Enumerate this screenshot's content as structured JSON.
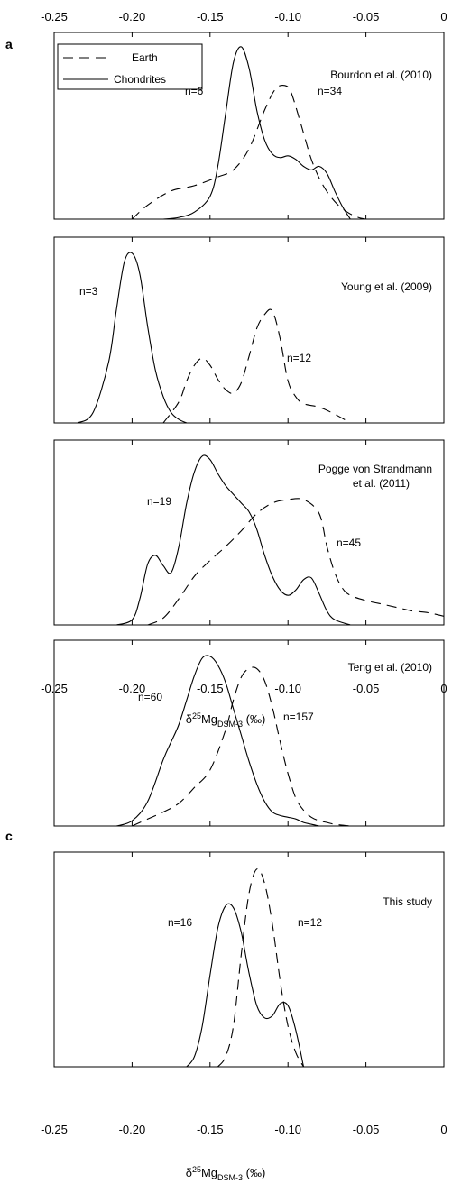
{
  "panel_labels": {
    "a": "a",
    "c": "c"
  },
  "legend": {
    "earth": "Earth",
    "chondrites": "Chondrites"
  },
  "axis": {
    "tick_labels": [
      "-0.25",
      "-0.20",
      "-0.15",
      "-0.10",
      "-0.05",
      "0"
    ],
    "xlabel_delta": "δ",
    "xlabel_super": "25",
    "xlabel_mg": "Mg",
    "xlabel_sub": "DSM-3",
    "xlabel_unit": " (‰)"
  },
  "chart_data": [
    {
      "type": "line",
      "title": "Bourdon et al. (2010)",
      "xlim": [
        -0.25,
        0
      ],
      "series": [
        {
          "name": "Earth",
          "style": "dashed",
          "label": "n=34",
          "x": [
            -0.2,
            -0.19,
            -0.175,
            -0.16,
            -0.145,
            -0.135,
            -0.125,
            -0.115,
            -0.108,
            -0.102,
            -0.098,
            -0.092,
            -0.085,
            -0.078,
            -0.07,
            -0.062,
            -0.055,
            -0.05
          ],
          "y": [
            0.0,
            0.08,
            0.16,
            0.19,
            0.24,
            0.28,
            0.4,
            0.62,
            0.74,
            0.76,
            0.72,
            0.55,
            0.34,
            0.2,
            0.1,
            0.04,
            0.01,
            0.0
          ]
        },
        {
          "name": "Chondrites",
          "style": "solid",
          "label": "n=6",
          "x": [
            -0.18,
            -0.17,
            -0.16,
            -0.15,
            -0.145,
            -0.14,
            -0.135,
            -0.13,
            -0.125,
            -0.12,
            -0.115,
            -0.11,
            -0.105,
            -0.1,
            -0.095,
            -0.09,
            -0.085,
            -0.08,
            -0.075,
            -0.07,
            -0.065,
            -0.06
          ],
          "y": [
            0.0,
            0.01,
            0.04,
            0.13,
            0.3,
            0.6,
            0.89,
            0.98,
            0.86,
            0.62,
            0.45,
            0.37,
            0.35,
            0.36,
            0.34,
            0.3,
            0.28,
            0.3,
            0.26,
            0.16,
            0.07,
            0.0
          ]
        }
      ]
    },
    {
      "type": "line",
      "title": "Young et al. (2009)",
      "xlim": [
        -0.25,
        0
      ],
      "series": [
        {
          "name": "Earth",
          "style": "dashed",
          "label": "n=12",
          "x": [
            -0.18,
            -0.17,
            -0.165,
            -0.16,
            -0.155,
            -0.15,
            -0.145,
            -0.14,
            -0.135,
            -0.13,
            -0.125,
            -0.12,
            -0.115,
            -0.11,
            -0.105,
            -0.1,
            -0.095,
            -0.09,
            -0.08,
            -0.07,
            -0.06
          ],
          "y": [
            0.0,
            0.12,
            0.24,
            0.33,
            0.37,
            0.33,
            0.25,
            0.19,
            0.17,
            0.23,
            0.38,
            0.54,
            0.62,
            0.64,
            0.48,
            0.24,
            0.15,
            0.11,
            0.09,
            0.05,
            0.0
          ]
        },
        {
          "name": "Chondrites",
          "style": "solid",
          "label": "n=3",
          "x": [
            -0.235,
            -0.225,
            -0.215,
            -0.21,
            -0.205,
            -0.2,
            -0.195,
            -0.19,
            -0.185,
            -0.18,
            -0.175,
            -0.17,
            -0.165
          ],
          "y": [
            0.0,
            0.06,
            0.35,
            0.65,
            0.92,
            0.97,
            0.85,
            0.55,
            0.3,
            0.15,
            0.06,
            0.02,
            0.0
          ]
        }
      ]
    },
    {
      "type": "line",
      "title": "Pogge von Strandmann et al. (2011)",
      "xlim": [
        -0.25,
        0
      ],
      "series": [
        {
          "name": "Earth",
          "style": "dashed",
          "label": "n=45",
          "x": [
            -0.19,
            -0.18,
            -0.17,
            -0.16,
            -0.15,
            -0.14,
            -0.13,
            -0.12,
            -0.11,
            -0.1,
            -0.09,
            -0.08,
            -0.075,
            -0.07,
            -0.065,
            -0.06,
            -0.05,
            -0.04,
            -0.03,
            -0.02,
            -0.01,
            0.0
          ],
          "y": [
            0.0,
            0.04,
            0.15,
            0.28,
            0.37,
            0.45,
            0.54,
            0.64,
            0.7,
            0.72,
            0.72,
            0.64,
            0.45,
            0.3,
            0.21,
            0.17,
            0.14,
            0.12,
            0.1,
            0.08,
            0.07,
            0.05
          ]
        },
        {
          "name": "Chondrites",
          "style": "solid",
          "label": "n=19",
          "x": [
            -0.21,
            -0.2,
            -0.195,
            -0.19,
            -0.185,
            -0.18,
            -0.175,
            -0.17,
            -0.165,
            -0.16,
            -0.155,
            -0.15,
            -0.145,
            -0.14,
            -0.135,
            -0.13,
            -0.125,
            -0.12,
            -0.115,
            -0.11,
            -0.105,
            -0.1,
            -0.095,
            -0.09,
            -0.085,
            -0.08,
            -0.075,
            -0.07,
            -0.06
          ],
          "y": [
            0.0,
            0.03,
            0.15,
            0.35,
            0.4,
            0.34,
            0.3,
            0.45,
            0.7,
            0.88,
            0.97,
            0.95,
            0.87,
            0.8,
            0.75,
            0.7,
            0.65,
            0.55,
            0.4,
            0.28,
            0.2,
            0.17,
            0.2,
            0.26,
            0.27,
            0.18,
            0.08,
            0.03,
            0.0
          ]
        }
      ]
    },
    {
      "type": "line",
      "title": "Teng et al. (2010)",
      "xlim": [
        -0.25,
        0
      ],
      "series": [
        {
          "name": "Earth",
          "style": "dashed",
          "label": "n=157",
          "x": [
            -0.2,
            -0.19,
            -0.18,
            -0.17,
            -0.16,
            -0.15,
            -0.14,
            -0.135,
            -0.13,
            -0.125,
            -0.12,
            -0.115,
            -0.11,
            -0.105,
            -0.1,
            -0.095,
            -0.09,
            -0.085,
            -0.08,
            -0.075,
            -0.07,
            -0.06
          ],
          "y": [
            0.0,
            0.04,
            0.08,
            0.13,
            0.22,
            0.32,
            0.55,
            0.72,
            0.85,
            0.9,
            0.9,
            0.83,
            0.68,
            0.48,
            0.3,
            0.16,
            0.09,
            0.05,
            0.03,
            0.02,
            0.01,
            0.0
          ]
        },
        {
          "name": "Chondrites",
          "style": "solid",
          "label": "n=60",
          "x": [
            -0.21,
            -0.2,
            -0.19,
            -0.18,
            -0.175,
            -0.17,
            -0.165,
            -0.16,
            -0.155,
            -0.15,
            -0.145,
            -0.14,
            -0.135,
            -0.13,
            -0.125,
            -0.12,
            -0.115,
            -0.11,
            -0.105,
            -0.1,
            -0.095,
            -0.09,
            -0.085,
            -0.08
          ],
          "y": [
            0.0,
            0.03,
            0.14,
            0.38,
            0.48,
            0.58,
            0.72,
            0.86,
            0.96,
            0.97,
            0.92,
            0.82,
            0.67,
            0.52,
            0.37,
            0.24,
            0.14,
            0.08,
            0.06,
            0.05,
            0.04,
            0.02,
            0.01,
            0.0
          ]
        }
      ]
    },
    {
      "type": "line",
      "title": "This study",
      "xlim": [
        -0.25,
        0
      ],
      "series": [
        {
          "name": "Earth",
          "style": "dashed",
          "label": "n=12",
          "x": [
            -0.145,
            -0.14,
            -0.135,
            -0.13,
            -0.125,
            -0.12,
            -0.115,
            -0.11,
            -0.105,
            -0.1,
            -0.095,
            -0.09
          ],
          "y": [
            0.0,
            0.05,
            0.2,
            0.55,
            0.85,
            0.97,
            0.9,
            0.7,
            0.42,
            0.2,
            0.07,
            0.0
          ]
        },
        {
          "name": "Chondrites",
          "style": "solid",
          "label": "n=16",
          "x": [
            -0.165,
            -0.16,
            -0.155,
            -0.15,
            -0.145,
            -0.14,
            -0.135,
            -0.13,
            -0.125,
            -0.12,
            -0.115,
            -0.11,
            -0.105,
            -0.1,
            -0.095,
            -0.09
          ],
          "y": [
            0.0,
            0.05,
            0.2,
            0.45,
            0.68,
            0.79,
            0.78,
            0.66,
            0.46,
            0.3,
            0.24,
            0.25,
            0.31,
            0.3,
            0.18,
            0.0
          ]
        }
      ]
    }
  ]
}
